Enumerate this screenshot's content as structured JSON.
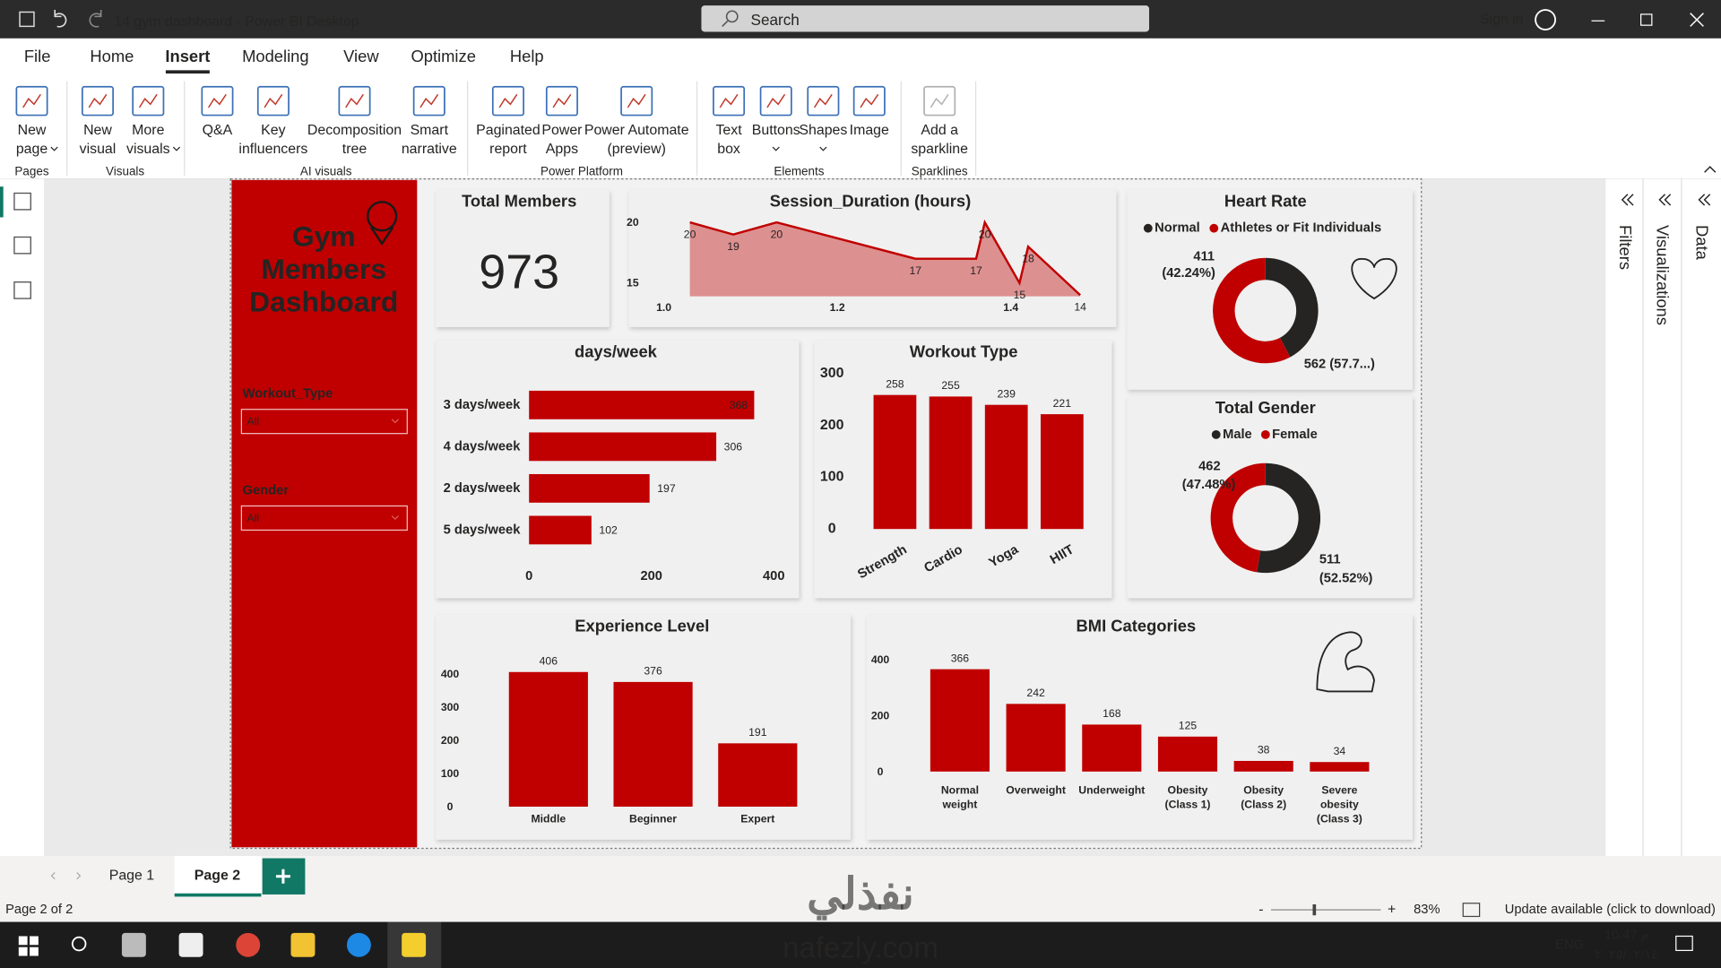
{
  "window": {
    "title": "14 gym dashboard - Power BI Desktop",
    "search": "Search",
    "sign_in": "Sign in"
  },
  "menu": [
    {
      "label": "File"
    },
    {
      "label": "Home"
    },
    {
      "label": "Insert",
      "active": true
    },
    {
      "label": "Modeling"
    },
    {
      "label": "View"
    },
    {
      "label": "Optimize"
    },
    {
      "label": "Help"
    }
  ],
  "ribbon": {
    "groups": [
      {
        "name": "Pages",
        "buttons": [
          {
            "lines": [
              "New",
              "page"
            ],
            "dropdown": true
          }
        ]
      },
      {
        "name": "Visuals",
        "buttons": [
          {
            "lines": [
              "New",
              "visual"
            ]
          },
          {
            "lines": [
              "More",
              "visuals"
            ],
            "dropdown": true
          }
        ]
      },
      {
        "name": "AI visuals",
        "buttons": [
          {
            "lines": [
              "Q&A"
            ]
          },
          {
            "lines": [
              "Key",
              "influencers"
            ]
          },
          {
            "lines": [
              "Decomposition",
              "tree"
            ]
          },
          {
            "lines": [
              "Smart",
              "narrative"
            ]
          }
        ]
      },
      {
        "name": "Power Platform",
        "buttons": [
          {
            "lines": [
              "Paginated",
              "report"
            ]
          },
          {
            "lines": [
              "Power",
              "Apps"
            ]
          },
          {
            "lines": [
              "Power Automate",
              "(preview)"
            ]
          }
        ]
      },
      {
        "name": "Elements",
        "buttons": [
          {
            "lines": [
              "Text",
              "box"
            ]
          },
          {
            "lines": [
              "Buttons"
            ],
            "dropdown": true
          },
          {
            "lines": [
              "Shapes"
            ],
            "dropdown": true
          },
          {
            "lines": [
              "Image"
            ]
          }
        ]
      },
      {
        "name": "Sparklines",
        "buttons": [
          {
            "lines": [
              "Add a",
              "sparkline"
            ],
            "disabled": true
          }
        ]
      }
    ]
  },
  "panes": [
    "Filters",
    "Visualizations",
    "Data"
  ],
  "dashboard": {
    "title_lines": [
      "Gym",
      "Members",
      "Dashboard"
    ],
    "slicers": [
      {
        "label": "Workout_Type",
        "value": "All"
      },
      {
        "label": "Gender",
        "value": "All"
      }
    ],
    "total_members": {
      "title": "Total Members",
      "value": 973
    },
    "charts": [
      {
        "type": "area",
        "title": "Session_Duration (hours)",
        "x": [
          1.03,
          1.08,
          1.13,
          1.29,
          1.36,
          1.37,
          1.41,
          1.42,
          1.48
        ],
        "values": [
          20,
          19,
          20,
          17,
          17,
          20,
          15,
          18,
          14
        ],
        "color": "#c00000",
        "xlim": [
          0.98,
          1.5
        ],
        "xticks": [
          {
            "value": 1,
            "label": "1.0"
          },
          {
            "value": 1.2,
            "label": "1.2"
          },
          {
            "value": 1.4,
            "label": "1.4"
          }
        ],
        "ylim": [
          13.9,
          20.6
        ],
        "yticks": [
          15,
          20
        ]
      },
      {
        "type": "hbar",
        "title": "days/week",
        "categories": [
          "3 days/week",
          "4 days/week",
          "2 days/week",
          "5 days/week"
        ],
        "values": [
          368,
          306,
          197,
          102
        ],
        "color": "#c00000",
        "xlim": [
          0,
          400
        ],
        "xticks": [
          0,
          200,
          400
        ]
      },
      {
        "type": "bar",
        "title": "Workout Type",
        "categories": [
          "Strength",
          "Cardio",
          "Yoga",
          "HIIT"
        ],
        "values": [
          258,
          255,
          239,
          221
        ],
        "color": "#c00000",
        "ylim": [
          0,
          300
        ],
        "yticks": [
          0,
          100,
          200,
          300
        ],
        "rotate_labels": true
      },
      {
        "type": "donut",
        "title": "Heart Rate",
        "categories": [
          "Normal",
          "Athletes or Fit Individuals"
        ],
        "values": [
          411,
          562
        ],
        "value_labels": [
          "411 (42.24%)",
          "562 (57.7...)"
        ],
        "colors": [
          "#252423",
          "#c00000"
        ]
      },
      {
        "type": "donut",
        "title": "Total Gender",
        "categories": [
          "Male",
          "Female"
        ],
        "values": [
          511,
          462
        ],
        "value_labels": [
          "511 (52.52%)",
          "462 (47.48%)"
        ],
        "colors": [
          "#252423",
          "#c00000"
        ]
      },
      {
        "type": "bar",
        "title": "Experience Level",
        "categories": [
          "Middle",
          "Beginner",
          "Expert"
        ],
        "values": [
          406,
          376,
          191
        ],
        "color": "#c00000",
        "ylim": [
          0,
          460
        ],
        "yticks": [
          0,
          100,
          200,
          300,
          400
        ]
      },
      {
        "type": "bar",
        "title": "BMI Categories",
        "categories": [
          "Normal weight",
          "Overweight",
          "Underweight",
          "Obesity (Class 1)",
          "Obesity (Class 2)",
          "Severe obesity (Class 3)"
        ],
        "values": [
          366,
          242,
          168,
          125,
          38,
          34
        ],
        "color": "#c00000",
        "ylim": [
          0,
          420
        ],
        "yticks": [
          0,
          200,
          400
        ]
      }
    ]
  },
  "tabs": [
    {
      "label": "Page 1"
    },
    {
      "label": "Page 2",
      "active": true
    }
  ],
  "status": {
    "page": "Page 2 of 2",
    "zoom": "83%",
    "update": "Update available (click to download)"
  },
  "taskbar": {
    "language": "ENG",
    "time": "10:47 م",
    "date": "٢٠٢٥/٠٢/١٤"
  },
  "watermark": {
    "arabic": "نفذلي",
    "site": "nafezly.com"
  }
}
